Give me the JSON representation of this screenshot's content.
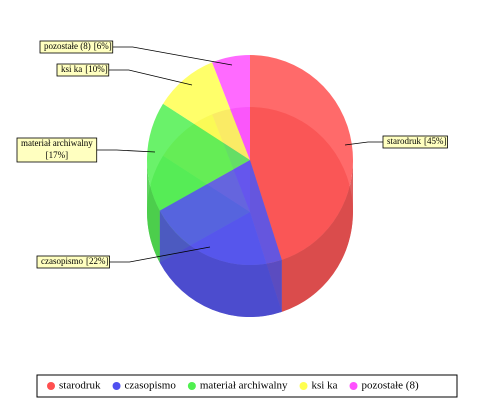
{
  "chart_data": {
    "type": "pie",
    "categories": [
      "starodruk",
      "czasopismo",
      "materiał archiwalny",
      "ksi  ka",
      "pozostałe (8)"
    ],
    "values": [
      45,
      22,
      17,
      10,
      6
    ],
    "value_labels": [
      "[45%]",
      "[22%]",
      "[17%]",
      "[10%]",
      "[6%]"
    ],
    "colors": [
      "#ff5050",
      "#5050f0",
      "#50f050",
      "#ffff50",
      "#ff50ff"
    ],
    "legend": "bottom"
  }
}
